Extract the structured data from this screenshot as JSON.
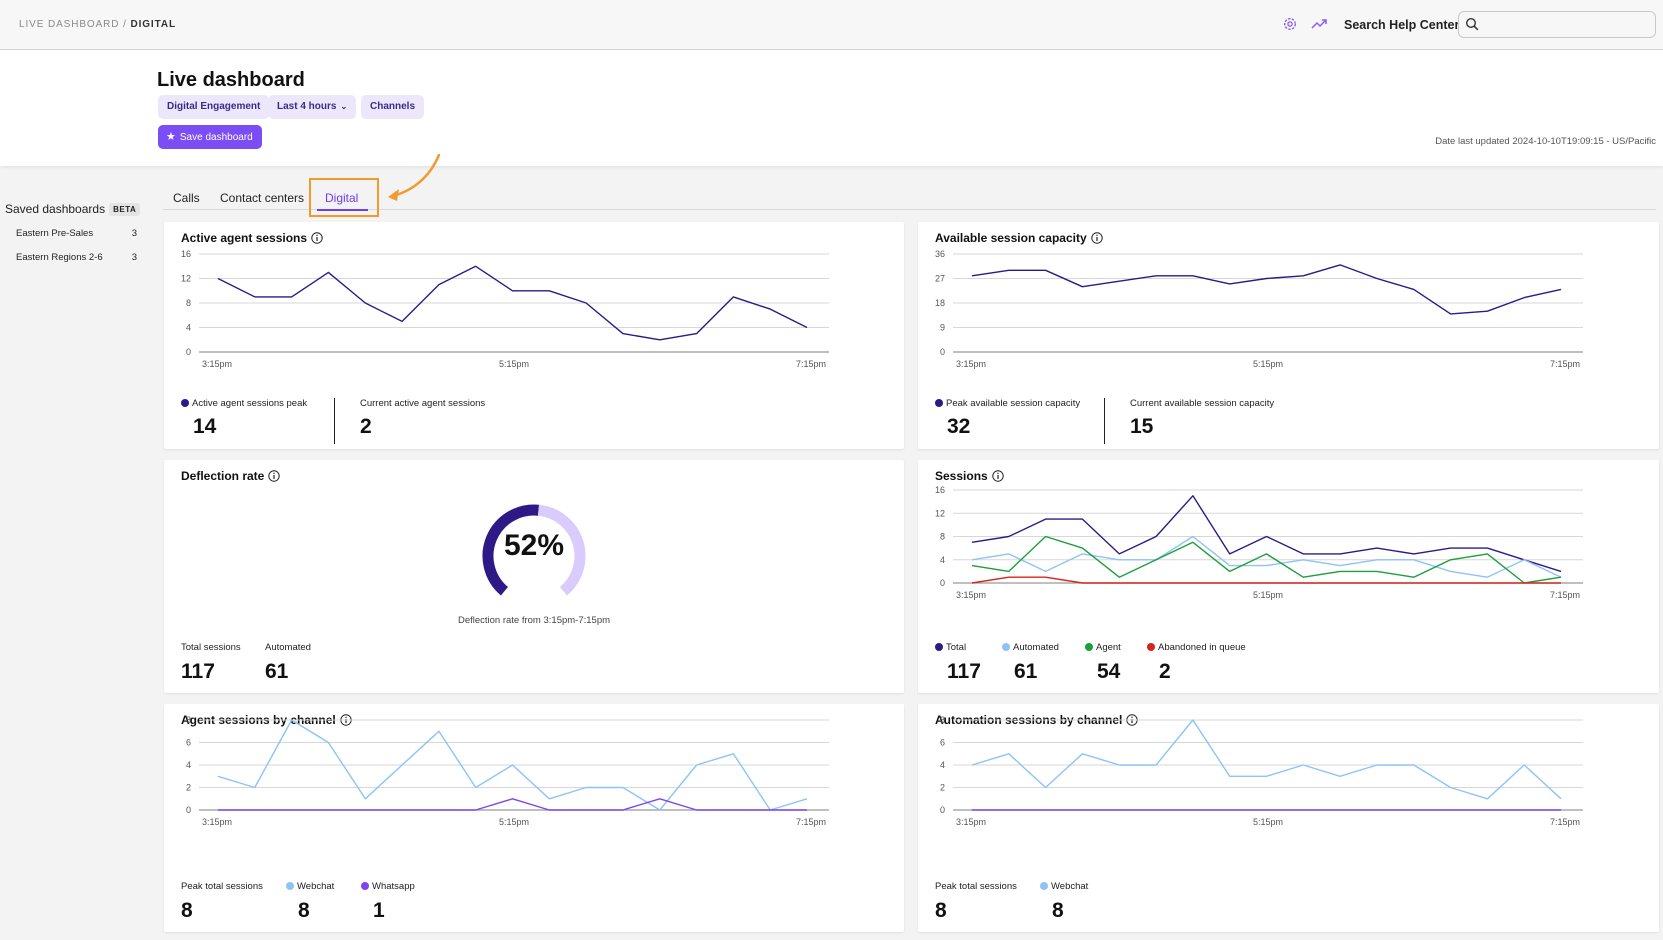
{
  "breadcrumb": {
    "root": "LIVE DASHBOARD",
    "sep": " / ",
    "current": "DIGITAL"
  },
  "topbar": {
    "icons": [
      "gear-icon",
      "trend-icon",
      "search-icon"
    ],
    "help_label": "Search Help Center:",
    "search_placeholder": ""
  },
  "colors": {
    "accent": "#7c4df4",
    "chip_bg": "#ece7fb",
    "navy": "#2e1a87",
    "light_blue": "#8ec3f6",
    "green": "#1e9e3c",
    "red": "#d9241c",
    "purple": "#7d45ee",
    "light_purple": "#d9cbfb",
    "annotation": "#f29a2e"
  },
  "header": {
    "title": "Live dashboard",
    "chips": [
      "Digital Engagement",
      "Last 4 hours",
      "Channels"
    ],
    "save_label": "Save dashboard",
    "updated": "Date last updated 2024-10-10T19:09:15 - US/Pacific"
  },
  "sidebar": {
    "title": "Saved dashboards",
    "badge": "BETA",
    "items": [
      {
        "label": "Eastern Pre-Sales",
        "count": "3"
      },
      {
        "label": "Eastern Regions 2-6",
        "count": "3"
      }
    ]
  },
  "tabs": [
    "Calls",
    "Contact centers",
    "Digital"
  ],
  "active_tab": "Digital",
  "cards": {
    "active_agent": {
      "title": "Active agent sessions",
      "legend1": "Active agent sessions peak",
      "value1": "14",
      "label2": "Current active agent sessions",
      "value2": "2"
    },
    "available": {
      "title": "Available session capacity",
      "legend1": "Peak available session capacity",
      "value1": "32",
      "label2": "Current available session capacity",
      "value2": "15"
    },
    "deflection": {
      "title": "Deflection rate",
      "value": "52%",
      "caption": "Deflection rate from 3:15pm-7:15pm",
      "label1": "Total sessions",
      "value1": "117",
      "label2": "Automated",
      "value2": "61"
    },
    "sessions": {
      "title": "Sessions",
      "stats": [
        {
          "label": "Total",
          "value": "117"
        },
        {
          "label": "Automated",
          "value": "61"
        },
        {
          "label": "Agent",
          "value": "54"
        },
        {
          "label": "Abandoned in queue",
          "value": "2"
        }
      ]
    },
    "agent_channel": {
      "title": "Agent sessions by channel",
      "label1": "Peak total sessions",
      "value1": "8",
      "label2": "Webchat",
      "value2": "8",
      "label3": "Whatsapp",
      "value3": "1"
    },
    "auto_channel": {
      "title": "Automation sessions by channel",
      "label1": "Peak total sessions",
      "value1": "8",
      "label2": "Webchat",
      "value2": "8"
    }
  },
  "chart_data": [
    {
      "id": "active_agent",
      "type": "line",
      "x_ticks": [
        "3:15pm",
        "5:15pm",
        "7:15pm"
      ],
      "y_ticks": [
        0,
        4,
        8,
        12,
        16
      ],
      "ylim": [
        0,
        16
      ],
      "grid": true,
      "series": [
        {
          "name": "Active agent sessions peak",
          "color": "#2e1a87",
          "values": [
            12,
            9,
            9,
            13,
            8,
            5,
            11,
            14,
            10,
            10,
            8,
            3,
            2,
            3,
            9,
            7,
            4
          ]
        }
      ]
    },
    {
      "id": "available",
      "type": "line",
      "x_ticks": [
        "3:15pm",
        "5:15pm",
        "7:15pm"
      ],
      "y_ticks": [
        0,
        9,
        18,
        27,
        36
      ],
      "ylim": [
        0,
        36
      ],
      "grid": true,
      "series": [
        {
          "name": "Peak available session capacity",
          "color": "#2e1a87",
          "values": [
            28,
            30,
            30,
            24,
            26,
            28,
            28,
            25,
            27,
            28,
            32,
            27,
            23,
            14,
            15,
            20,
            23
          ]
        }
      ]
    },
    {
      "id": "sessions",
      "type": "line",
      "x_ticks": [
        "3:15pm",
        "7:15pm"
      ],
      "x_mid": "5:15pm",
      "y_ticks": [
        0,
        4,
        8,
        12,
        16
      ],
      "ylim": [
        0,
        16
      ],
      "grid": true,
      "series": [
        {
          "name": "Total",
          "color": "#2e1a87",
          "values": [
            7,
            8,
            11,
            11,
            5,
            8,
            15,
            5,
            8,
            5,
            5,
            6,
            5,
            6,
            6,
            4,
            2
          ]
        },
        {
          "name": "Automated",
          "color": "#8ec3f6",
          "values": [
            4,
            5,
            2,
            5,
            4,
            4,
            8,
            3,
            3,
            4,
            3,
            4,
            4,
            2,
            1,
            4,
            1
          ]
        },
        {
          "name": "Agent",
          "color": "#1e9e3c",
          "values": [
            3,
            2,
            8,
            6,
            1,
            4,
            7,
            2,
            5,
            1,
            2,
            2,
            1,
            4,
            5,
            0,
            1
          ]
        },
        {
          "name": "Abandoned in queue",
          "color": "#d9241c",
          "values": [
            0,
            1,
            1,
            0,
            0,
            0,
            0,
            0,
            0,
            0,
            0,
            0,
            0,
            0,
            0,
            0,
            0
          ]
        }
      ]
    },
    {
      "id": "agent_channel",
      "type": "line",
      "x_ticks": [
        "3:15pm",
        "5:15pm",
        "7:15pm"
      ],
      "y_ticks": [
        0,
        2,
        4,
        6,
        8
      ],
      "ylim": [
        0,
        8
      ],
      "grid": true,
      "series": [
        {
          "name": "Webchat",
          "color": "#8ec3f6",
          "values": [
            3,
            2,
            8,
            6,
            1,
            4,
            7,
            2,
            4,
            1,
            2,
            2,
            0,
            4,
            5,
            0,
            1
          ]
        },
        {
          "name": "Whatsapp",
          "color": "#7d45ee",
          "values": [
            0,
            0,
            0,
            0,
            0,
            0,
            0,
            0,
            1,
            0,
            0,
            0,
            1,
            0,
            0,
            0,
            0
          ]
        }
      ]
    },
    {
      "id": "auto_channel",
      "type": "line",
      "x_ticks": [
        "3:15pm",
        "5:15pm",
        "7:15pm"
      ],
      "y_ticks": [
        0,
        2,
        4,
        6,
        8
      ],
      "ylim": [
        0,
        8
      ],
      "grid": true,
      "series": [
        {
          "name": "Webchat",
          "color": "#8ec3f6",
          "values": [
            4,
            5,
            2,
            5,
            4,
            4,
            8,
            3,
            3,
            4,
            3,
            4,
            4,
            2,
            1,
            4,
            1
          ]
        },
        {
          "name": "",
          "color": "#7d45ee",
          "values": [
            0,
            0,
            0,
            0,
            0,
            0,
            0,
            0,
            0,
            0,
            0,
            0,
            0,
            0,
            0,
            0,
            0
          ]
        }
      ]
    },
    {
      "id": "deflection_gauge",
      "type": "pie",
      "slices": [
        {
          "label": "Automated",
          "value": 52,
          "color": "#2e1a87"
        },
        {
          "label": "",
          "value": 48,
          "color": "#d9cbfb"
        }
      ]
    }
  ]
}
